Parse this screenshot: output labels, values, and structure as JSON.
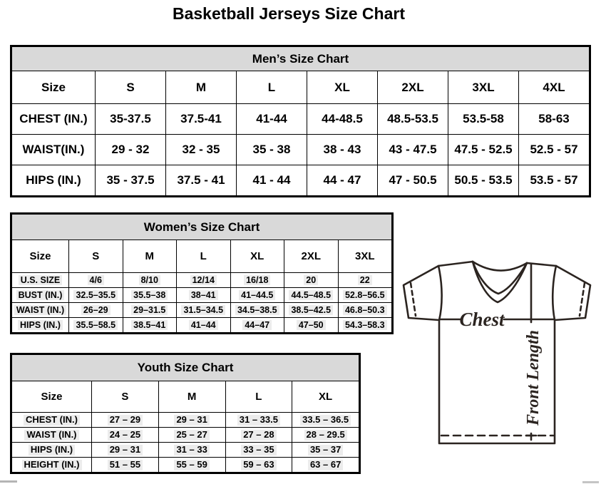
{
  "page_title": "Basketball Jerseys Size Chart",
  "colors": {
    "table_header_bg": "#d9d9d9",
    "border": "#000000",
    "text": "#000000",
    "value_highlight": "#ececec",
    "diagram_ink": "#2b2420"
  },
  "tables": [
    {
      "id": "mens",
      "title": "Men’s Size Chart",
      "size_label": "Size",
      "highlight": false,
      "columns": [
        "S",
        "M",
        "L",
        "XL",
        "2XL",
        "3XL",
        "4XL"
      ],
      "rows": [
        {
          "label": "CHEST (IN.)",
          "values": [
            "35-37.5",
            "37.5-41",
            "41-44",
            "44-48.5",
            "48.5-53.5",
            "53.5-58",
            "58-63"
          ]
        },
        {
          "label": "WAIST(IN.)",
          "values": [
            "29 - 32",
            "32 - 35",
            "35 - 38",
            "38 - 43",
            "43 - 47.5",
            "47.5 - 52.5",
            "52.5 - 57"
          ]
        },
        {
          "label": "HIPS (IN.)",
          "values": [
            "35 - 37.5",
            "37.5 - 41",
            "41 - 44",
            "44 - 47",
            "47 - 50.5",
            "50.5 - 53.5",
            "53.5 - 57"
          ]
        }
      ]
    },
    {
      "id": "womens",
      "title": "Women’s Size Chart",
      "size_label": "Size",
      "highlight": true,
      "columns": [
        "S",
        "M",
        "L",
        "XL",
        "2XL",
        "3XL"
      ],
      "rows": [
        {
          "label": "U.S. SIZE",
          "values": [
            "4/6",
            "8/10",
            "12/14",
            "16/18",
            "20",
            "22"
          ]
        },
        {
          "label": "BUST (IN.)",
          "values": [
            "32.5–35.5",
            "35.5–38",
            "38–41",
            "41–44.5",
            "44.5–48.5",
            "52.8–56.5"
          ]
        },
        {
          "label": "WAIST (IN.)",
          "values": [
            "26–29",
            "29–31.5",
            "31.5–34.5",
            "34.5–38.5",
            "38.5–42.5",
            "46.8–50.3"
          ]
        },
        {
          "label": "HIPS (IN.)",
          "values": [
            "35.5–58.5",
            "38.5–41",
            "41–44",
            "44–47",
            "47–50",
            "54.3–58.3"
          ]
        }
      ]
    },
    {
      "id": "youth",
      "title": "Youth Size Chart",
      "size_label": "Size",
      "highlight": true,
      "columns": [
        "S",
        "M",
        "L",
        "XL"
      ],
      "rows": [
        {
          "label": "CHEST (IN.)",
          "values": [
            "27 – 29",
            "29 – 31",
            "31 – 33.5",
            "33.5 – 36.5"
          ]
        },
        {
          "label": "WAIST (IN.)",
          "values": [
            "24 – 25",
            "25 – 27",
            "27 – 28",
            "28 – 29.5"
          ]
        },
        {
          "label": "HIPS (IN.)",
          "values": [
            "29 – 31",
            "31 – 33",
            "33 – 35",
            "35 – 37"
          ]
        },
        {
          "label": "HEIGHT (IN.)",
          "values": [
            "51 – 55",
            "55 – 59",
            "59 – 63",
            "63 – 67"
          ]
        }
      ]
    }
  ],
  "diagram": {
    "chest_label": "Chest",
    "front_length_label": "Front Length"
  }
}
